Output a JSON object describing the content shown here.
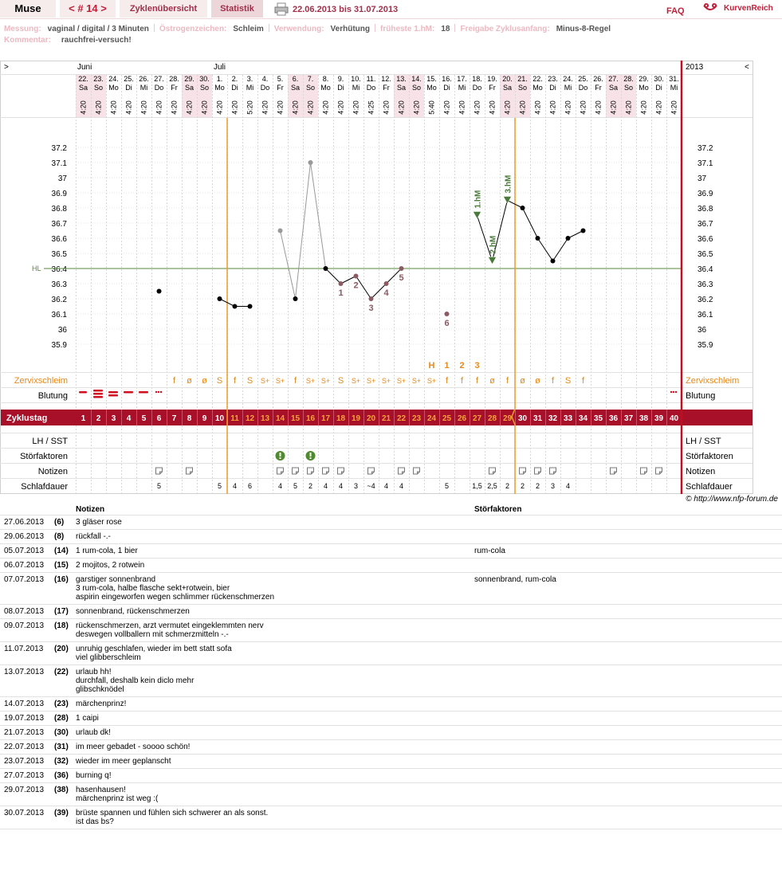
{
  "header": {
    "user": "Muse",
    "cycle": "< # 14 >",
    "tabs": [
      "Zyklenübersicht",
      "Statistik"
    ],
    "range": "22.06.2013 bis 31.07.2013",
    "faq": "FAQ",
    "logo": "KurvenReich"
  },
  "info": [
    {
      "label": "Messung:",
      "value": "vaginal / digital / 3 Minuten"
    },
    {
      "label": "Östrogenzeichen:",
      "value": "Schleim"
    },
    {
      "label": "Verwendung:",
      "value": "Verhütung"
    },
    {
      "label": "früheste 1.hM:",
      "value": "18"
    },
    {
      "label": "Freigabe Zyklusanfang:",
      "value": "Minus-8-Regel"
    }
  ],
  "comment": {
    "label": "Kommentar:",
    "value": "rauchfrei-versuch!"
  },
  "chart_data": {
    "type": "line",
    "nav_prev": ">",
    "nav_next": "<",
    "year": "2013",
    "months": [
      "Juni",
      "Juli"
    ],
    "categories": [
      "22.",
      "23.",
      "24.",
      "25.",
      "26.",
      "27.",
      "28.",
      "29.",
      "30.",
      "1.",
      "2.",
      "3.",
      "4.",
      "5.",
      "6.",
      "7.",
      "8.",
      "9.",
      "10.",
      "11.",
      "12.",
      "13.",
      "14.",
      "15.",
      "16.",
      "17.",
      "18.",
      "19.",
      "20.",
      "21.",
      "22.",
      "23.",
      "24.",
      "25.",
      "26.",
      "27.",
      "28.",
      "29.",
      "30.",
      "31."
    ],
    "weekdays": [
      "Sa",
      "So",
      "Mo",
      "Di",
      "Mi",
      "Do",
      "Fr",
      "Sa",
      "So",
      "Mo",
      "Di",
      "Mi",
      "Do",
      "Fr",
      "Sa",
      "So",
      "Mo",
      "Di",
      "Mi",
      "Do",
      "Fr",
      "Sa",
      "So",
      "Mo",
      "Di",
      "Mi",
      "Do",
      "Fr",
      "Sa",
      "So",
      "Mo",
      "Di",
      "Mi",
      "Do",
      "Fr",
      "Sa",
      "So",
      "Mo",
      "Di",
      "Mi"
    ],
    "times": [
      "4:20",
      "4:20",
      "4:20",
      "4:20",
      "4:20",
      "4:20",
      "4:20",
      "4:20",
      "4:20",
      "4:20",
      "4:20",
      "5:20",
      "4:20",
      "4:20",
      "4:20",
      "4:20",
      "4:20",
      "4:20",
      "4:20",
      "4:25",
      "4:20",
      "4:20",
      "4:20",
      "5:40",
      "4:20",
      "4:20",
      "4:20",
      "4:20",
      "4:20",
      "4:20",
      "4:20",
      "4:20",
      "4:20",
      "4:20",
      "4:20",
      "4:20",
      "4:20",
      "4:20",
      "4:20",
      "4:20"
    ],
    "values": [
      null,
      null,
      null,
      null,
      null,
      36.25,
      null,
      null,
      null,
      36.2,
      36.15,
      36.15,
      null,
      36.65,
      36.2,
      37.1,
      36.4,
      36.3,
      36.35,
      36.2,
      36.3,
      36.4,
      null,
      null,
      36.1,
      null,
      36.75,
      36.45,
      36.85,
      36.8,
      36.6,
      36.45,
      36.6,
      36.65,
      null,
      null,
      null,
      null,
      null,
      null
    ],
    "point_styles": [
      null,
      null,
      null,
      null,
      null,
      "normal",
      null,
      null,
      null,
      "normal",
      "normal",
      "normal",
      null,
      "excluded",
      "normal",
      "excluded",
      "normal",
      "low",
      "low",
      "low",
      "low",
      "low",
      null,
      null,
      "low",
      null,
      "hm",
      "hm",
      "hm",
      "normal",
      "normal",
      "normal",
      "normal",
      "normal",
      null,
      null,
      null,
      null,
      null,
      null
    ],
    "point_labels": [
      null,
      null,
      null,
      null,
      null,
      null,
      null,
      null,
      null,
      null,
      null,
      null,
      null,
      null,
      null,
      null,
      null,
      "1",
      "2",
      "3",
      "4",
      "5",
      null,
      null,
      "6",
      null,
      "1.hM",
      "2.hM",
      "3.hM",
      null,
      null,
      null,
      null,
      null,
      null,
      null,
      null,
      null,
      null,
      null
    ],
    "colors": {
      "normal": "#000000",
      "excluded": "#999999",
      "low": "#8b5a62",
      "hm": "#4a7a3a",
      "hl": "#5a8a3a"
    },
    "ylim": [
      35.7,
      37.4
    ],
    "yticks": [
      35.9,
      36,
      36.1,
      36.2,
      36.3,
      36.4,
      36.5,
      36.6,
      36.7,
      36.8,
      36.9,
      37,
      37.1,
      37.2
    ],
    "grid": true,
    "hl": 36.4,
    "hl_label": "HL"
  },
  "rows": {
    "labels": {
      "mucus": "Zervixschleim",
      "bleeding": "Blutung",
      "cycle": "Zyklustag",
      "lh": "LH / SST",
      "factors": "Störfaktoren",
      "notes": "Notizen",
      "sleep": "Schlafdauer"
    },
    "peak": [
      null,
      null,
      null,
      null,
      null,
      null,
      null,
      null,
      null,
      null,
      null,
      null,
      null,
      null,
      null,
      null,
      null,
      null,
      null,
      null,
      null,
      null,
      null,
      "H",
      "1",
      "2",
      "3",
      null,
      null,
      null,
      null,
      null,
      null,
      null,
      null,
      null,
      null,
      null,
      null,
      null
    ],
    "mucus": [
      null,
      null,
      null,
      null,
      null,
      null,
      "f",
      "ø",
      "ø",
      "S",
      "f",
      "S",
      "S+",
      "S+",
      "f",
      "S+",
      "S+",
      "S",
      "S+",
      "S+",
      "S+",
      "S+",
      "S+",
      "S+",
      "f",
      "f",
      "f",
      "ø",
      "f",
      "ø",
      "ø",
      "f",
      "S",
      "f",
      null,
      null,
      null,
      null,
      null,
      null
    ],
    "cycle_days": [
      1,
      2,
      3,
      4,
      5,
      6,
      7,
      8,
      9,
      10,
      11,
      12,
      13,
      14,
      15,
      16,
      17,
      18,
      19,
      20,
      21,
      22,
      23,
      24,
      25,
      26,
      27,
      28,
      29,
      30,
      31,
      32,
      33,
      34,
      35,
      36,
      37,
      38,
      39,
      40
    ],
    "fertile_window": [
      11,
      29
    ],
    "sleep": [
      null,
      null,
      null,
      null,
      null,
      "5",
      null,
      null,
      null,
      "5",
      "4",
      "6",
      null,
      "4",
      "5",
      "2",
      "4",
      "4",
      "3",
      "~4",
      "4",
      "4",
      null,
      null,
      "5",
      null,
      "1,5",
      "2,5",
      "2",
      "2",
      "2",
      "3",
      "4",
      null,
      null,
      null,
      null,
      null,
      null,
      null
    ]
  },
  "copyright": "© http://www.nfp-forum.de",
  "notes_table": {
    "columns": [
      "Notizen",
      "Störfaktoren"
    ],
    "rows": [
      {
        "date": "27.06.2013",
        "day": "(6)",
        "note": [
          "3 gläser rose"
        ],
        "factors": null
      },
      {
        "date": "29.06.2013",
        "day": "(8)",
        "note": [
          "rückfall -.-"
        ],
        "factors": null
      },
      {
        "date": "05.07.2013",
        "day": "(14)",
        "note": [
          "1 rum-cola, 1 bier"
        ],
        "factors": "rum-cola"
      },
      {
        "date": "06.07.2013",
        "day": "(15)",
        "note": [
          "2 mojitos, 2 rotwein"
        ],
        "factors": null
      },
      {
        "date": "07.07.2013",
        "day": "(16)",
        "note": [
          "garstiger sonnenbrand",
          "3 rum-cola, halbe flasche sekt+rotwein, bier",
          "aspirin eingeworfen wegen schlimmer rückenschmerzen"
        ],
        "factors": "sonnenbrand, rum-cola"
      },
      {
        "date": "08.07.2013",
        "day": "(17)",
        "note": [
          "sonnenbrand, rückenschmerzen"
        ],
        "factors": null
      },
      {
        "date": "09.07.2013",
        "day": "(18)",
        "note": [
          "rückenschmerzen, arzt vermutet eingeklemmten nerv",
          "deswegen vollballern mit schmerzmitteln -.-"
        ],
        "factors": null
      },
      {
        "date": "11.07.2013",
        "day": "(20)",
        "note": [
          "unruhig geschlafen, wieder im bett statt sofa",
          "viel glibberschleim"
        ],
        "factors": null
      },
      {
        "date": "13.07.2013",
        "day": "(22)",
        "note": [
          "urlaub hh!",
          "durchfall, deshalb kein diclo mehr",
          "glibschknödel"
        ],
        "factors": null
      },
      {
        "date": "14.07.2013",
        "day": "(23)",
        "note": [
          "märchenprinz!"
        ],
        "factors": null
      },
      {
        "date": "19.07.2013",
        "day": "(28)",
        "note": [
          "1 caipi"
        ],
        "factors": null
      },
      {
        "date": "21.07.2013",
        "day": "(30)",
        "note": [
          "urlaub dk!"
        ],
        "factors": null
      },
      {
        "date": "22.07.2013",
        "day": "(31)",
        "note": [
          "im meer gebadet - soooo schön!"
        ],
        "factors": null
      },
      {
        "date": "23.07.2013",
        "day": "(32)",
        "note": [
          "wieder im meer geplanscht"
        ],
        "factors": null
      },
      {
        "date": "27.07.2013",
        "day": "(36)",
        "note": [
          "burning q!"
        ],
        "factors": null
      },
      {
        "date": "29.07.2013",
        "day": "(38)",
        "note": [
          "hasenhausen!",
          "märchenprinz ist weg :("
        ],
        "factors": null
      },
      {
        "date": "30.07.2013",
        "day": "(39)",
        "note": [
          "brüste spannen und fühlen sich schwerer an als sonst.",
          "ist das bs?"
        ],
        "factors": null
      }
    ]
  }
}
